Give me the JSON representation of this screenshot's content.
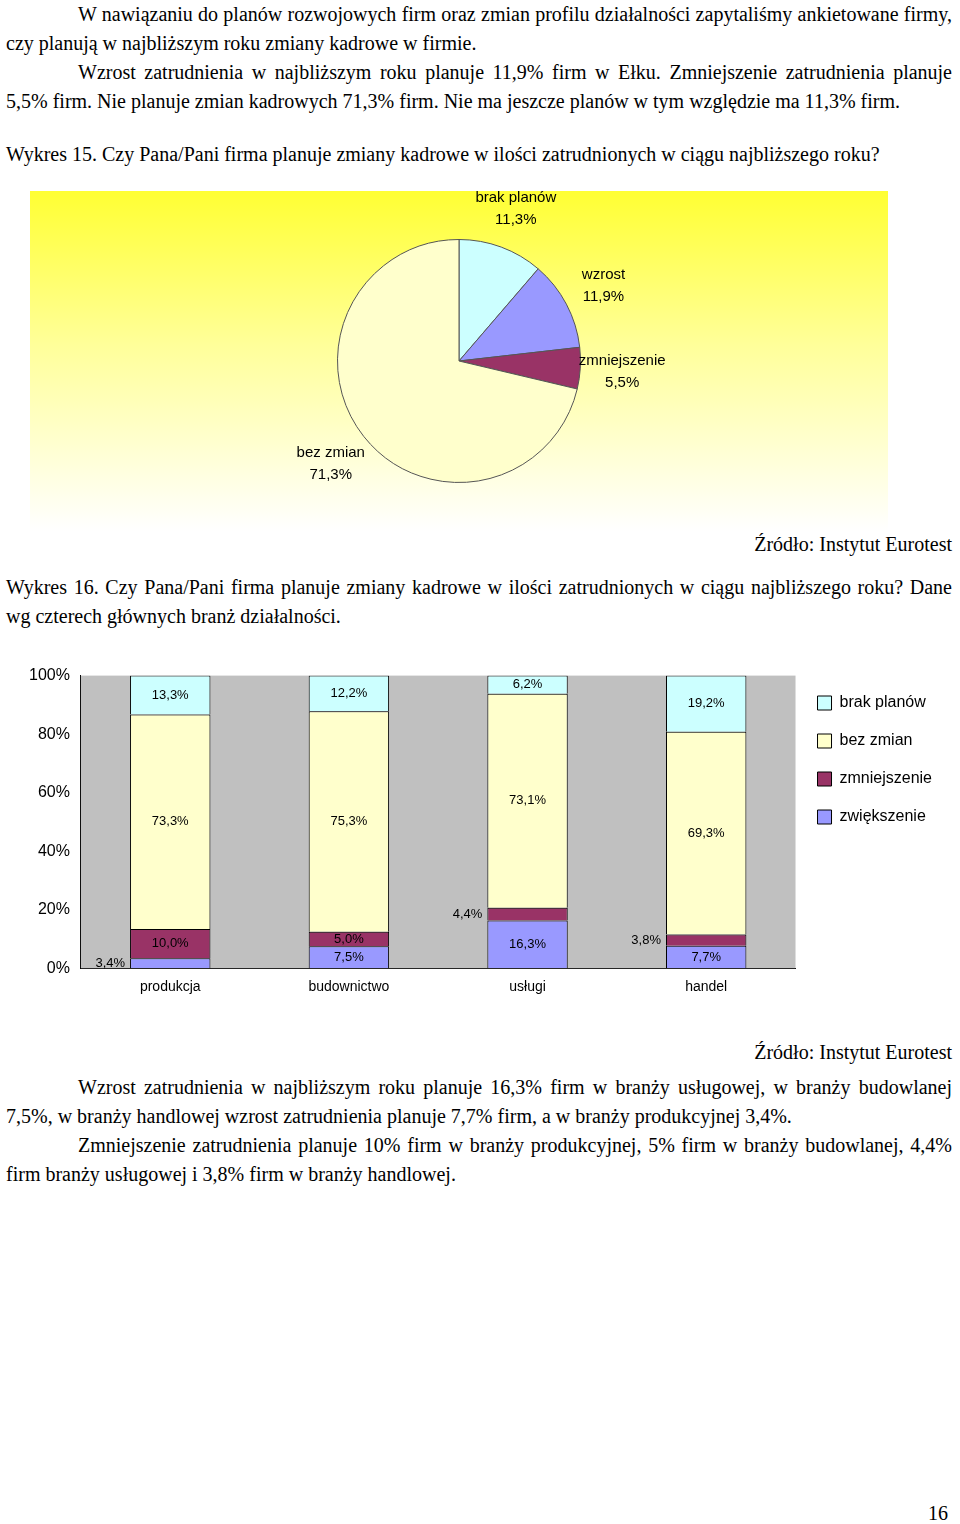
{
  "paragraphs_top": [
    "W nawiązaniu do planów rozwojowych firm oraz zmian profilu działalności zapytaliśmy ankietowane firmy, czy planują w najbliższym roku zmiany kadrowe w firmie.",
    "Wzrost zatrudnienia w najbliższym roku planuje 11,9% firm w Ełku. Zmniejszenie zatrudnienia planuje 5,5% firm. Nie planuje zmian kadrowych 71,3% firm. Nie ma jeszcze planów w tym względzie ma 11,3% firm."
  ],
  "chart_data": [
    {
      "type": "pie",
      "title": "Wykres 15. Czy Pana/Pani firma planuje zmiany kadrowe w ilości zatrudnionych w ciągu najbliższego roku?",
      "categories": [
        "brak planów",
        "wzrost",
        "zmniejszenie",
        "bez zmian"
      ],
      "values": [
        11.3,
        11.9,
        5.5,
        71.3
      ],
      "value_labels": [
        "11,3%",
        "11,9%",
        "5,5%",
        "71,3%"
      ],
      "colors": [
        "#ccffff",
        "#9999ff",
        "#993366",
        "#ffffcc"
      ],
      "data_labels": true
    },
    {
      "type": "bar",
      "title": "Wykres 16. Czy Pana/Pani firma planuje zmiany kadrowe w ilości zatrudnionych w ciągu najbliższego roku? Dane wg czterech głównych branż działalności.",
      "categories": [
        "produkcja",
        "budownictwo",
        "usługi",
        "handel"
      ],
      "series": [
        {
          "name": "zwiększenie",
          "color": "#9999ff",
          "values": [
            3.4,
            7.5,
            16.3,
            7.7
          ],
          "value_labels": [
            "3,4%",
            "7,5%",
            "16,3%",
            "7,7%"
          ]
        },
        {
          "name": "zmniejszenie",
          "color": "#993366",
          "values": [
            10.0,
            5.0,
            4.4,
            3.8
          ],
          "value_labels": [
            "10,0%",
            "5,0%",
            "4,4%",
            "3,8%"
          ]
        },
        {
          "name": "bez zmian",
          "color": "#ffffcc",
          "values": [
            73.3,
            75.3,
            73.1,
            69.3
          ],
          "value_labels": [
            "73,3%",
            "75,3%",
            "73,1%",
            "69,3%"
          ]
        },
        {
          "name": "brak planów",
          "color": "#ccffff",
          "values": [
            13.3,
            12.2,
            6.2,
            19.2
          ],
          "value_labels": [
            "13,3%",
            "12,2%",
            "6,2%",
            "19,2%"
          ]
        }
      ],
      "stacked": true,
      "ylim": [
        0,
        100
      ],
      "yticks": [
        {
          "value": 0,
          "label": "0%"
        },
        {
          "value": 20,
          "label": "20%"
        },
        {
          "value": 40,
          "label": "40%"
        },
        {
          "value": 60,
          "label": "60%"
        },
        {
          "value": 80,
          "label": "80%"
        },
        {
          "value": 100,
          "label": "100%"
        }
      ],
      "grid": false,
      "legend": "right",
      "data_labels": true
    }
  ],
  "source": "Źródło: Instytut Eurotest",
  "paragraphs_bottom": [
    "Wzrost zatrudnienia  w najbliższym roku planuje 16,3% firm w branży usługowej, w branży budowlanej 7,5%,  w branży handlowej wzrost zatrudnienia planuje 7,7% firm, a w branży produkcyjnej 3,4%.",
    "Zmniejszenie zatrudnienia planuje 10% firm w branży produkcyjnej, 5% firm w branży budowlanej, 4,4% firm branży usługowej i 3,8% firm w branży handlowej."
  ],
  "page_number": "16"
}
